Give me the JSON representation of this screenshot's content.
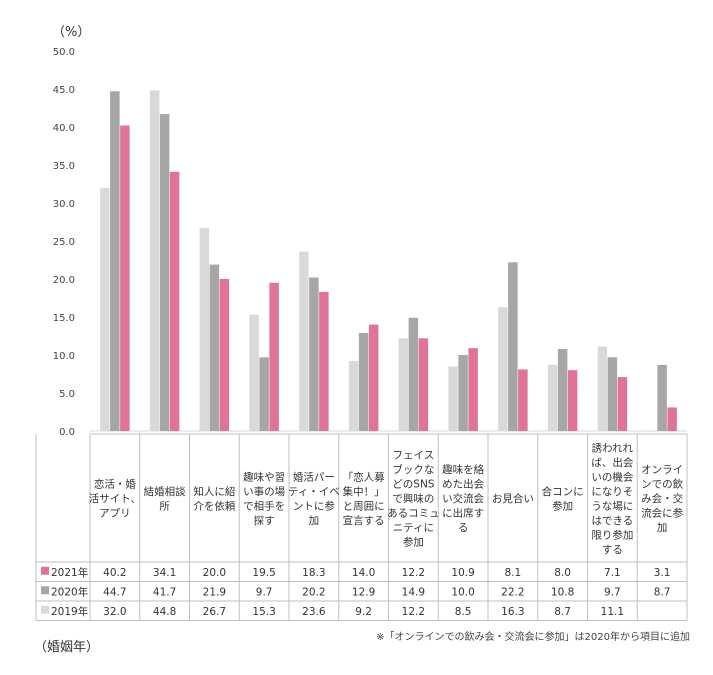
{
  "chart_data": {
    "type": "bar",
    "unit_label": "（%）",
    "ylim": [
      0,
      50
    ],
    "yticks": [
      "0.0",
      "5.0",
      "10.0",
      "15.0",
      "20.0",
      "25.0",
      "30.0",
      "35.0",
      "40.0",
      "45.0",
      "50.0"
    ],
    "categories": [
      [
        "恋活・婚",
        "活サイト、",
        "アプリ"
      ],
      [
        "結婚相談",
        "所"
      ],
      [
        "知人に紹",
        "介を依頼"
      ],
      [
        "趣味や習",
        "い事の場",
        "で相手を",
        "探す"
      ],
      [
        "婚活パー",
        "ティ・イベ",
        "ントに参",
        "加"
      ],
      [
        "「恋人募",
        "集中！」",
        "と周囲に",
        "宣言する"
      ],
      [
        "フェイス",
        "ブックな",
        "どのSNS",
        "で興味の",
        "あるコミュ",
        "ニティに",
        "参加"
      ],
      [
        "趣味を絡",
        "めた出会",
        "い交流会",
        "に出席す",
        "る"
      ],
      [
        "お見合い"
      ],
      [
        "合コンに",
        "参加"
      ],
      [
        "誘われれ",
        "ば、出会",
        "いの機会",
        "になりそ",
        "うな場に",
        "はできる",
        "限り参加",
        "する"
      ],
      [
        "オンライ",
        "ンでの飲",
        "み会・交",
        "流会に参",
        "加"
      ]
    ],
    "series": [
      {
        "name": "2019年",
        "color": "#d9d9d9",
        "values": [
          32.0,
          44.8,
          26.7,
          15.3,
          23.6,
          9.2,
          12.2,
          8.5,
          16.3,
          8.7,
          11.1,
          null
        ],
        "labels": [
          "32.0",
          "44.8",
          "26.7",
          "15.3",
          "23.6",
          "9.2",
          "12.2",
          "8.5",
          "16.3",
          "8.7",
          "11.1",
          ""
        ]
      },
      {
        "name": "2020年",
        "color": "#a6a6a6",
        "values": [
          44.7,
          41.7,
          21.9,
          9.7,
          20.2,
          12.9,
          14.9,
          10.0,
          22.2,
          10.8,
          9.7,
          8.7
        ],
        "labels": [
          "44.7",
          "41.7",
          "21.9",
          "9.7",
          "20.2",
          "12.9",
          "14.9",
          "10.0",
          "22.2",
          "10.8",
          "9.7",
          "8.7"
        ]
      },
      {
        "name": "2021年",
        "color": "#e0739a",
        "values": [
          40.2,
          34.1,
          20.0,
          19.5,
          18.3,
          14.0,
          12.2,
          10.9,
          8.1,
          8.0,
          7.1,
          3.1
        ],
        "labels": [
          "40.2",
          "34.1",
          "20.0",
          "19.5",
          "18.3",
          "14.0",
          "12.2",
          "10.9",
          "8.1",
          "8.0",
          "7.1",
          "3.1"
        ]
      }
    ],
    "table_row_order": [
      2,
      1,
      0
    ],
    "note": "※「オンラインでの飲み会・交流会に参加」は2020年から項目に追加",
    "footer_label": "（婚姻年）",
    "grid": false
  }
}
